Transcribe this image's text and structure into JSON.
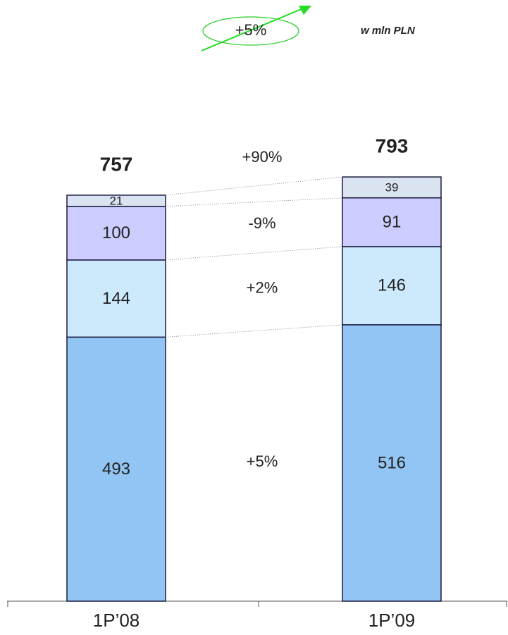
{
  "chart_data": {
    "type": "stacked_bar",
    "unit": "w mln PLN",
    "growth": "+5%",
    "categories": [
      "1P’08",
      "1P’09"
    ],
    "series": [
      {
        "color": "#92c5f3",
        "values": [
          493,
          516
        ]
      },
      {
        "color": "#cdeafc",
        "values": [
          144,
          146
        ]
      },
      {
        "color": "#ccccfe",
        "values": [
          100,
          91
        ]
      },
      {
        "color": "#d9e4f0",
        "values": [
          21,
          39
        ]
      }
    ],
    "totals": [
      757,
      793
    ],
    "changes": [
      "+5%",
      "+2%",
      "-9%",
      "+90%"
    ],
    "ylim": [
      0,
      850
    ]
  }
}
